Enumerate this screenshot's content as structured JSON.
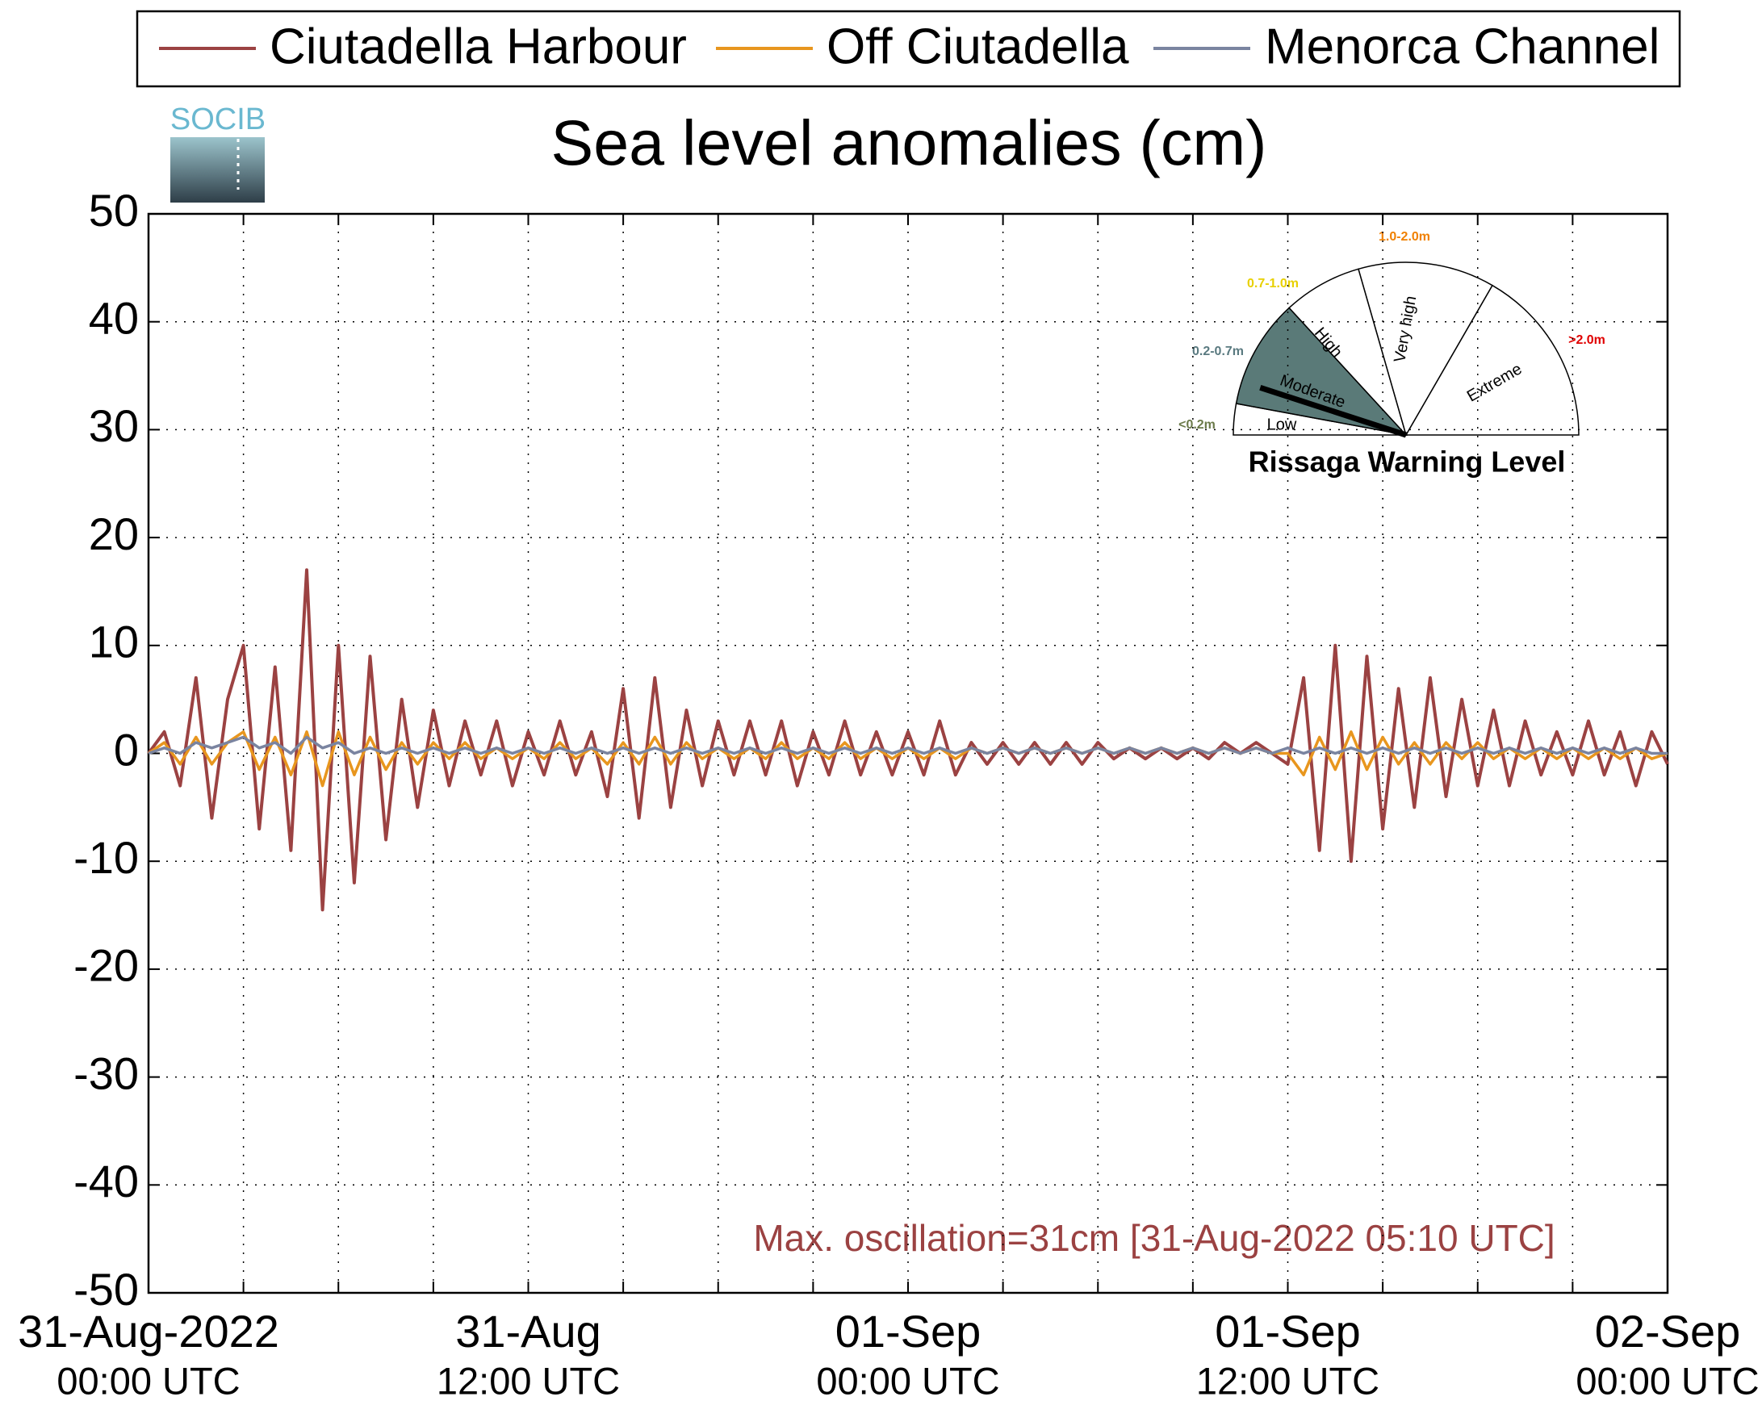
{
  "chart_data": {
    "type": "line",
    "title": "Sea level anomalies (cm)",
    "logo": "SOCIB",
    "annotation": "Max. oscillation=31cm [31-Aug-2022 05:10 UTC]",
    "legend": "top",
    "grid": true,
    "xlim": [
      0,
      48
    ],
    "ylim": [
      -50,
      50
    ],
    "yticks": [
      -50,
      -40,
      -30,
      -20,
      -10,
      0,
      10,
      20,
      30,
      40,
      50
    ],
    "xticks": [
      {
        "value": 0,
        "label": "31-Aug-2022",
        "sublabel": "00:00 UTC"
      },
      3,
      6,
      9,
      {
        "value": 12,
        "label": "31-Aug",
        "sublabel": "12:00 UTC"
      },
      15,
      18,
      21,
      {
        "value": 24,
        "label": "01-Sep",
        "sublabel": "00:00 UTC"
      },
      27,
      30,
      33,
      {
        "value": 36,
        "label": "01-Sep",
        "sublabel": "12:00 UTC"
      },
      39,
      42,
      45,
      {
        "value": 48,
        "label": "02-Sep",
        "sublabel": "00:00 UTC"
      }
    ],
    "x": [
      0,
      0.5,
      1,
      1.5,
      2,
      2.5,
      3,
      3.5,
      4,
      4.5,
      5,
      5.5,
      6,
      6.5,
      7,
      7.5,
      8,
      8.5,
      9,
      9.5,
      10,
      10.5,
      11,
      11.5,
      12,
      12.5,
      13,
      13.5,
      14,
      14.5,
      15,
      15.5,
      16,
      16.5,
      17,
      17.5,
      18,
      18.5,
      19,
      19.5,
      20,
      20.5,
      21,
      21.5,
      22,
      22.5,
      23,
      23.5,
      24,
      24.5,
      25,
      25.5,
      26,
      26.5,
      27,
      27.5,
      28,
      28.5,
      29,
      29.5,
      30,
      30.5,
      31,
      31.5,
      32,
      32.5,
      33,
      33.5,
      34,
      34.5,
      35,
      35.5,
      36,
      36.5,
      37,
      37.5,
      38,
      38.5,
      39,
      39.5,
      40,
      40.5,
      41,
      41.5,
      42,
      42.5,
      43,
      43.5,
      44,
      44.5,
      45,
      45.5,
      46,
      46.5,
      47,
      47.5,
      48
    ],
    "series": [
      {
        "name": "Ciutadella Harbour",
        "color": "#9b4242",
        "values": [
          0,
          2,
          -3,
          7,
          -6,
          5,
          10,
          -7,
          8,
          -9,
          17,
          -14.5,
          10,
          -12,
          9,
          -8,
          5,
          -5,
          4,
          -3,
          3,
          -2,
          3,
          -3,
          2,
          -2,
          3,
          -2,
          2,
          -4,
          6,
          -6,
          7,
          -5,
          4,
          -3,
          3,
          -2,
          3,
          -2,
          3,
          -3,
          2,
          -2,
          3,
          -2,
          2,
          -2,
          2,
          -2,
          3,
          -2,
          1,
          -1,
          1,
          -1,
          1,
          -1,
          1,
          -1,
          1,
          -0.5,
          0.5,
          -0.5,
          0.5,
          -0.5,
          0.5,
          -0.5,
          1,
          0,
          1,
          0,
          -1,
          7,
          -9,
          10,
          -10,
          9,
          -7,
          6,
          -5,
          7,
          -4,
          5,
          -3,
          4,
          -3,
          3,
          -2,
          2,
          -2,
          3,
          -2,
          2,
          -3,
          2,
          -1
        ]
      },
      {
        "name": "Off Ciutadella",
        "color": "#e8961e",
        "values": [
          0,
          1,
          -1,
          1.5,
          -1,
          1,
          2,
          -1.5,
          1.5,
          -2,
          2,
          -3,
          2,
          -2,
          1.5,
          -1.5,
          1,
          -1,
          1,
          -0.5,
          1,
          -0.5,
          0.5,
          -0.5,
          0.5,
          -0.5,
          1,
          -0.5,
          0.5,
          -1,
          1,
          -1,
          1.5,
          -1,
          1,
          -0.5,
          0.5,
          -0.5,
          0.5,
          -0.5,
          1,
          -0.5,
          0.5,
          -0.5,
          1,
          -0.5,
          0.5,
          -0.5,
          0.5,
          -0.5,
          0.5,
          -0.5,
          0.5,
          0,
          0.5,
          0,
          0.5,
          0,
          0.5,
          0,
          0.5,
          0,
          0.5,
          0,
          0.5,
          0,
          0.5,
          0,
          0.5,
          0,
          0.5,
          0,
          0,
          -2,
          1.5,
          -1.5,
          2,
          -1.5,
          1.5,
          -1,
          1,
          -1,
          1,
          -0.5,
          1,
          -0.5,
          0.5,
          -0.5,
          0.5,
          -0.5,
          0.5,
          -0.5,
          0.5,
          -0.5,
          0.5,
          -0.5,
          0
        ]
      },
      {
        "name": "Menorca Channel",
        "color": "#7a84a0",
        "values": [
          0,
          0.5,
          0,
          1,
          0.5,
          1,
          1.5,
          0.5,
          1,
          0,
          1.5,
          0.5,
          1,
          0,
          0.5,
          0,
          0.5,
          0,
          0.5,
          0,
          0.5,
          0,
          0.5,
          0,
          0.5,
          0,
          0.5,
          0,
          0.5,
          0,
          0.5,
          0,
          0.5,
          0,
          0.5,
          0,
          0.5,
          0,
          0.5,
          0,
          0.5,
          0,
          0.5,
          0,
          0.5,
          0,
          0.5,
          0,
          0.5,
          0,
          0.5,
          0,
          0.5,
          0,
          0.5,
          0,
          0.5,
          0,
          0.5,
          0,
          0.5,
          0,
          0.5,
          0,
          0.5,
          0,
          0.5,
          0,
          0.5,
          0,
          0.5,
          0,
          0.5,
          0,
          0.5,
          0,
          0.5,
          0,
          0.5,
          0,
          0.5,
          0,
          0.5,
          0,
          0.5,
          0,
          0.5,
          0,
          0.5,
          0,
          0.5,
          0,
          0.5,
          0,
          0.5,
          0,
          0
        ]
      }
    ]
  },
  "gauge": {
    "title": "Rissaga Warning Level",
    "levels": [
      {
        "name": "Low",
        "range": "<0.2m",
        "color": "#6b7a4a"
      },
      {
        "name": "Moderate",
        "range": "0.2-0.7m",
        "color": "#5a7a80"
      },
      {
        "name": "High",
        "range": "0.7-1.0m",
        "color": "#e8d000"
      },
      {
        "name": "Very high",
        "range": "1.0-2.0m",
        "color": "#f08000"
      },
      {
        "name": "Extreme",
        "range": ">2.0m",
        "color": "#e00000"
      }
    ]
  }
}
